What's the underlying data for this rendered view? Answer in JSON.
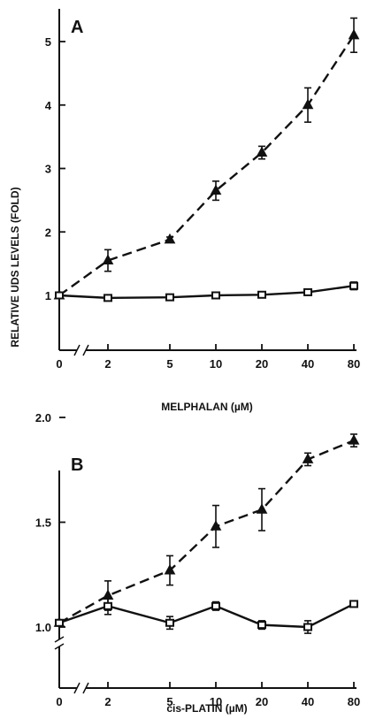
{
  "ylabel": "RELATIVE UDS LEVELS (FOLD)",
  "chart_data": [
    {
      "type": "line",
      "panel": "A",
      "xlabel": "MELPHALAN (µM)",
      "x_ticks": [
        "0",
        "2",
        "5",
        "10",
        "20",
        "40",
        "80"
      ],
      "x_axis": "categorical with break between 0 and 2",
      "ylim": [
        0,
        5.4
      ],
      "y_ticks": [
        "1",
        "2",
        "3",
        "4",
        "5"
      ],
      "y_tick_values": [
        1,
        2,
        3,
        4,
        5
      ],
      "grid": false,
      "series": [
        {
          "marker": "triangle",
          "line_style": "dashed",
          "values": [
            1.0,
            1.55,
            1.88,
            2.65,
            3.25,
            4.0,
            5.1
          ],
          "errors": [
            0.02,
            0.17,
            0.04,
            0.15,
            0.1,
            0.27,
            0.27
          ]
        },
        {
          "marker": "square",
          "line_style": "solid",
          "values": [
            1.0,
            0.96,
            0.97,
            1.0,
            1.01,
            1.05,
            1.15
          ],
          "errors": [
            0.02,
            0.03,
            0.02,
            0.02,
            0.02,
            0.04,
            0.06
          ]
        }
      ]
    },
    {
      "type": "line",
      "panel": "B",
      "xlabel": "cis-PLATIN (µM)",
      "x_ticks": [
        "0",
        "2",
        "5",
        "10",
        "20",
        "40",
        "80"
      ],
      "x_axis": "categorical with break between 0 and 2",
      "ylim": [
        0.7,
        2.1
      ],
      "y_axis_break": true,
      "y_ticks": [
        "1.0",
        "1.5",
        "2.0"
      ],
      "y_tick_values": [
        1.0,
        1.5,
        2.0
      ],
      "grid": false,
      "series": [
        {
          "marker": "triangle",
          "line_style": "dashed",
          "values": [
            1.02,
            1.15,
            1.27,
            1.48,
            1.56,
            1.8,
            1.89
          ],
          "errors": [
            0.01,
            0.07,
            0.07,
            0.1,
            0.1,
            0.03,
            0.03
          ]
        },
        {
          "marker": "square",
          "line_style": "solid",
          "values": [
            1.02,
            1.1,
            1.02,
            1.1,
            1.01,
            1.0,
            1.11
          ],
          "errors": [
            0.01,
            0.04,
            0.03,
            0.02,
            0.02,
            0.03,
            0.01
          ]
        }
      ]
    }
  ]
}
